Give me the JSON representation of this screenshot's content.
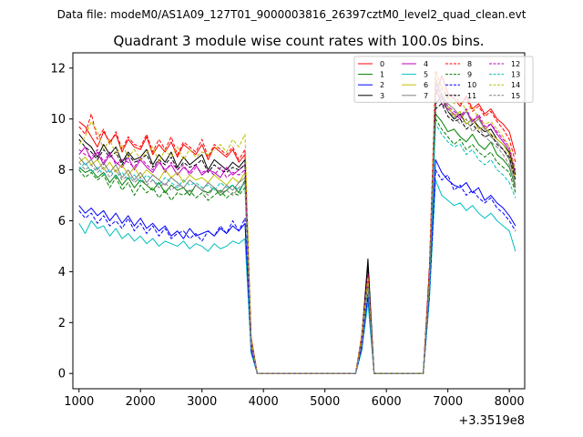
{
  "chart_data": {
    "type": "line",
    "suptitle": "Data file: modeM0/AS1A09_127T01_9000003816_26397cztM0_level2_quad_clean.evt",
    "title": "Quadrant 3 module wise count rates with 100.0s bins.",
    "xlabel": "",
    "ylabel": "",
    "x_offset_label": "+3.3519e8",
    "xlim": [
      900,
      8250
    ],
    "ylim": [
      -0.6,
      12.6
    ],
    "xticks": [
      1000,
      2000,
      3000,
      4000,
      5000,
      6000,
      7000,
      8000
    ],
    "xtick_labels": [
      "1000",
      "2000",
      "3000",
      "4000",
      "5000",
      "6000",
      "7000",
      "8000"
    ],
    "yticks": [
      0,
      2,
      4,
      6,
      8,
      10,
      12
    ],
    "ytick_labels": [
      "0",
      "2",
      "4",
      "6",
      "8",
      "10",
      "12"
    ],
    "legend_position": "top-right",
    "x": [
      1000,
      1100,
      1200,
      1300,
      1400,
      1500,
      1600,
      1700,
      1800,
      1900,
      2000,
      2100,
      2200,
      2300,
      2400,
      2500,
      2600,
      2700,
      2800,
      2900,
      3000,
      3100,
      3200,
      3300,
      3400,
      3500,
      3600,
      3700,
      3800,
      3900,
      5500,
      5600,
      5700,
      5800,
      6600,
      6700,
      6800,
      6900,
      7000,
      7100,
      7200,
      7300,
      7400,
      7500,
      7600,
      7700,
      7800,
      7900,
      8000,
      8100
    ],
    "series": [
      {
        "name": "0",
        "color": "#ff0000",
        "dash": "solid",
        "values": [
          9.9,
          9.7,
          9.3,
          8.9,
          9.5,
          9.1,
          9.4,
          8.7,
          9.2,
          8.9,
          8.8,
          9.3,
          8.6,
          9.0,
          8.7,
          9.1,
          8.5,
          9.0,
          8.8,
          8.6,
          9.0,
          8.4,
          8.9,
          8.7,
          8.5,
          8.8,
          8.3,
          8.6,
          1.4,
          0.0,
          0.0,
          1.5,
          4.1,
          0.0,
          0.0,
          4.1,
          10.9,
          11.7,
          11.0,
          10.8,
          10.5,
          10.9,
          10.4,
          10.6,
          10.2,
          10.4,
          10.0,
          9.8,
          9.5,
          8.6
        ]
      },
      {
        "name": "1",
        "color": "#008000",
        "dash": "solid",
        "values": [
          8.1,
          7.9,
          8.0,
          7.7,
          7.9,
          7.5,
          7.8,
          7.4,
          7.7,
          7.3,
          7.6,
          7.4,
          7.2,
          7.5,
          7.1,
          7.4,
          7.2,
          7.3,
          7.0,
          7.4,
          7.2,
          7.1,
          7.3,
          7.0,
          7.2,
          7.4,
          7.1,
          7.6,
          1.1,
          0.0,
          0.0,
          1.2,
          3.6,
          0.0,
          0.0,
          3.6,
          10.2,
          9.9,
          9.5,
          9.6,
          9.3,
          9.1,
          9.4,
          9.0,
          8.8,
          9.1,
          8.6,
          8.4,
          8.1,
          7.3
        ]
      },
      {
        "name": "2",
        "color": "#0000ff",
        "dash": "solid",
        "values": [
          6.6,
          6.3,
          6.5,
          6.2,
          6.4,
          6.0,
          6.3,
          5.9,
          6.2,
          5.8,
          6.1,
          5.7,
          5.9,
          5.6,
          5.8,
          5.4,
          5.6,
          5.3,
          5.7,
          5.4,
          5.5,
          5.6,
          5.4,
          5.7,
          5.5,
          5.8,
          5.6,
          5.9,
          0.9,
          0.0,
          0.0,
          1.0,
          3.0,
          0.0,
          0.0,
          3.0,
          8.4,
          7.9,
          7.6,
          7.4,
          7.3,
          7.5,
          7.1,
          7.3,
          6.8,
          7.0,
          6.7,
          6.5,
          6.2,
          5.8
        ]
      },
      {
        "name": "3",
        "color": "#000000",
        "dash": "solid",
        "values": [
          9.4,
          9.1,
          8.9,
          8.5,
          9.0,
          8.6,
          8.9,
          8.3,
          8.7,
          8.4,
          8.5,
          8.8,
          8.2,
          8.6,
          8.3,
          8.7,
          8.1,
          8.5,
          8.2,
          8.4,
          8.6,
          8.0,
          8.4,
          8.2,
          8.0,
          8.3,
          8.1,
          8.4,
          1.3,
          0.0,
          0.0,
          1.4,
          4.5,
          0.0,
          0.0,
          4.0,
          10.6,
          10.9,
          10.3,
          10.0,
          10.2,
          9.8,
          10.0,
          9.7,
          9.5,
          9.6,
          9.2,
          9.0,
          8.7,
          7.8
        ]
      },
      {
        "name": "4",
        "color": "#bf00bf",
        "dash": "solid",
        "values": [
          8.6,
          8.9,
          8.4,
          8.7,
          8.2,
          8.6,
          8.3,
          8.1,
          8.5,
          8.0,
          8.4,
          8.1,
          7.9,
          8.3,
          8.0,
          8.2,
          7.8,
          8.1,
          7.9,
          8.2,
          7.8,
          8.0,
          7.9,
          7.7,
          8.1,
          7.8,
          8.0,
          8.2,
          1.2,
          0.0,
          0.0,
          1.3,
          3.8,
          0.0,
          0.0,
          3.8,
          11.2,
          10.6,
          10.4,
          10.2,
          10.0,
          10.3,
          9.9,
          10.1,
          9.6,
          9.8,
          9.4,
          9.1,
          8.8,
          7.9
        ]
      },
      {
        "name": "5",
        "color": "#00bfbf",
        "dash": "solid",
        "values": [
          5.9,
          5.5,
          6.0,
          5.7,
          5.8,
          5.4,
          5.7,
          5.3,
          5.5,
          5.2,
          5.4,
          5.1,
          5.3,
          5.0,
          5.2,
          5.1,
          5.0,
          5.2,
          4.9,
          5.1,
          5.0,
          4.8,
          5.1,
          4.9,
          5.0,
          5.2,
          5.1,
          5.3,
          0.8,
          0.0,
          0.0,
          0.9,
          2.8,
          0.0,
          0.0,
          2.9,
          7.6,
          7.0,
          6.8,
          6.6,
          6.7,
          6.4,
          6.6,
          6.3,
          6.1,
          6.3,
          6.0,
          5.8,
          5.6,
          4.8
        ]
      },
      {
        "name": "6",
        "color": "#bfbf00",
        "dash": "solid",
        "values": [
          8.3,
          8.5,
          8.2,
          8.4,
          8.0,
          8.3,
          7.9,
          8.2,
          7.8,
          8.1,
          7.7,
          8.0,
          7.8,
          7.6,
          8.0,
          7.7,
          7.9,
          7.5,
          7.8,
          7.6,
          7.7,
          7.5,
          7.8,
          7.6,
          7.4,
          7.7,
          7.5,
          7.9,
          1.2,
          0.0,
          0.0,
          1.3,
          3.7,
          0.0,
          0.0,
          3.7,
          11.5,
          10.8,
          10.5,
          10.1,
          10.3,
          9.8,
          10.0,
          9.6,
          9.7,
          9.4,
          9.2,
          9.0,
          8.6,
          7.6
        ]
      },
      {
        "name": "7",
        "color": "#808080",
        "dash": "solid",
        "values": [
          8.5,
          8.2,
          8.4,
          8.0,
          8.3,
          7.9,
          8.2,
          7.7,
          8.0,
          7.6,
          7.9,
          7.5,
          7.8,
          7.6,
          7.4,
          7.7,
          7.5,
          7.3,
          7.6,
          7.4,
          7.2,
          7.5,
          7.3,
          7.1,
          7.4,
          7.2,
          7.5,
          7.7,
          1.1,
          0.0,
          0.0,
          1.2,
          3.6,
          0.0,
          0.0,
          3.6,
          11.6,
          11.0,
          10.6,
          10.4,
          10.1,
          10.3,
          9.8,
          10.0,
          9.6,
          9.3,
          9.1,
          8.8,
          8.4,
          7.4
        ]
      },
      {
        "name": "8",
        "color": "#ff0000",
        "dash": "dashed",
        "values": [
          9.7,
          9.4,
          10.2,
          9.2,
          9.6,
          9.0,
          9.5,
          8.8,
          9.3,
          9.0,
          8.9,
          9.4,
          8.7,
          9.2,
          8.8,
          9.3,
          8.6,
          9.1,
          8.9,
          8.7,
          9.2,
          8.5,
          9.0,
          8.8,
          8.6,
          8.9,
          8.4,
          8.8,
          1.4,
          0.0,
          0.0,
          1.5,
          4.0,
          0.0,
          0.0,
          4.2,
          11.9,
          11.2,
          10.8,
          11.0,
          10.6,
          10.8,
          10.3,
          10.5,
          10.1,
          10.3,
          9.9,
          9.6,
          9.2,
          8.3
        ]
      },
      {
        "name": "9",
        "color": "#008000",
        "dash": "dashed",
        "values": [
          8.0,
          7.7,
          7.9,
          7.6,
          7.8,
          7.3,
          7.7,
          7.2,
          7.5,
          7.0,
          7.4,
          7.1,
          7.3,
          6.9,
          7.2,
          6.8,
          7.1,
          7.0,
          7.2,
          6.9,
          7.1,
          6.8,
          7.0,
          7.2,
          6.9,
          7.1,
          7.0,
          7.3,
          1.1,
          0.0,
          0.0,
          1.2,
          3.5,
          0.0,
          0.0,
          3.5,
          10.0,
          9.6,
          9.3,
          9.0,
          9.2,
          8.8,
          9.0,
          8.7,
          8.5,
          8.7,
          8.3,
          8.1,
          7.9,
          7.1
        ]
      },
      {
        "name": "10",
        "color": "#0000ff",
        "dash": "dashed",
        "values": [
          6.4,
          6.1,
          6.3,
          5.9,
          6.2,
          5.8,
          6.0,
          5.7,
          6.1,
          5.6,
          5.9,
          5.5,
          5.8,
          5.4,
          5.7,
          5.3,
          5.5,
          5.6,
          5.3,
          5.5,
          5.2,
          5.6,
          5.4,
          5.8,
          5.5,
          6.0,
          5.6,
          6.1,
          0.9,
          0.0,
          0.0,
          1.0,
          3.1,
          0.0,
          0.0,
          3.1,
          8.0,
          7.6,
          7.8,
          7.2,
          7.4,
          7.0,
          7.2,
          6.9,
          6.7,
          6.9,
          6.5,
          6.3,
          6.0,
          5.6
        ]
      },
      {
        "name": "11",
        "color": "#000000",
        "dash": "dashed",
        "values": [
          9.2,
          8.9,
          8.7,
          8.4,
          8.8,
          8.5,
          8.7,
          8.2,
          8.6,
          8.3,
          8.4,
          8.6,
          8.1,
          8.4,
          8.2,
          8.5,
          8.0,
          8.3,
          8.1,
          8.2,
          8.4,
          7.9,
          8.2,
          8.0,
          7.9,
          8.1,
          8.0,
          8.2,
          1.3,
          0.0,
          0.0,
          1.4,
          4.2,
          0.0,
          0.0,
          4.0,
          10.4,
          10.6,
          10.1,
          9.9,
          10.0,
          9.6,
          9.8,
          9.5,
          9.3,
          9.4,
          9.0,
          8.8,
          8.5,
          7.6
        ]
      },
      {
        "name": "12",
        "color": "#bf00bf",
        "dash": "dashed",
        "values": [
          8.8,
          8.6,
          8.5,
          8.8,
          8.3,
          8.7,
          8.2,
          8.4,
          8.3,
          8.1,
          8.5,
          8.2,
          8.0,
          8.4,
          7.9,
          8.3,
          8.0,
          8.2,
          7.8,
          8.1,
          7.9,
          8.0,
          7.8,
          8.1,
          7.7,
          7.9,
          7.8,
          8.0,
          1.2,
          0.0,
          0.0,
          1.3,
          3.9,
          0.0,
          0.0,
          3.9,
          11.4,
          10.9,
          10.5,
          10.3,
          10.1,
          10.4,
          9.9,
          10.2,
          9.7,
          9.8,
          9.5,
          9.2,
          8.9,
          8.0
        ]
      },
      {
        "name": "13",
        "color": "#00bfbf",
        "dash": "dashed",
        "values": [
          8.0,
          8.3,
          7.9,
          8.1,
          7.8,
          8.0,
          7.7,
          7.9,
          7.6,
          7.8,
          7.5,
          7.8,
          7.6,
          7.4,
          7.7,
          7.5,
          7.3,
          7.6,
          7.4,
          7.5,
          7.3,
          7.4,
          7.2,
          7.5,
          7.3,
          7.4,
          7.2,
          7.5,
          1.1,
          0.0,
          0.0,
          1.2,
          3.4,
          0.0,
          0.0,
          3.4,
          9.8,
          9.4,
          9.1,
          8.9,
          9.0,
          8.6,
          8.8,
          8.4,
          8.2,
          8.4,
          8.0,
          7.8,
          7.5,
          6.9
        ]
      },
      {
        "name": "14",
        "color": "#bfbf00",
        "dash": "dashed",
        "values": [
          9.0,
          9.3,
          9.9,
          9.5,
          8.8,
          9.2,
          8.6,
          9.0,
          8.5,
          8.8,
          8.4,
          8.7,
          8.9,
          8.3,
          8.8,
          8.5,
          8.9,
          8.4,
          8.8,
          8.5,
          8.7,
          8.6,
          8.8,
          9.0,
          8.7,
          9.2,
          8.9,
          9.4,
          1.3,
          0.0,
          0.0,
          1.4,
          3.8,
          0.0,
          0.0,
          3.8,
          11.8,
          11.3,
          10.9,
          10.6,
          10.8,
          10.3,
          10.5,
          10.0,
          9.8,
          9.9,
          9.6,
          9.3,
          8.9,
          7.9
        ]
      },
      {
        "name": "15",
        "color": "#808080",
        "dash": "dashed",
        "values": [
          8.3,
          8.0,
          8.2,
          7.9,
          8.1,
          7.7,
          8.0,
          7.6,
          7.8,
          7.5,
          7.7,
          7.4,
          7.6,
          7.3,
          7.5,
          7.2,
          7.4,
          7.3,
          7.1,
          7.4,
          7.2,
          7.0,
          7.3,
          7.1,
          7.2,
          7.0,
          7.3,
          7.5,
          1.1,
          0.0,
          0.0,
          1.2,
          3.5,
          0.0,
          0.0,
          3.5,
          11.3,
          10.7,
          10.3,
          10.1,
          9.8,
          10.0,
          9.5,
          9.7,
          9.3,
          9.1,
          8.9,
          8.6,
          8.2,
          7.2
        ]
      }
    ]
  }
}
